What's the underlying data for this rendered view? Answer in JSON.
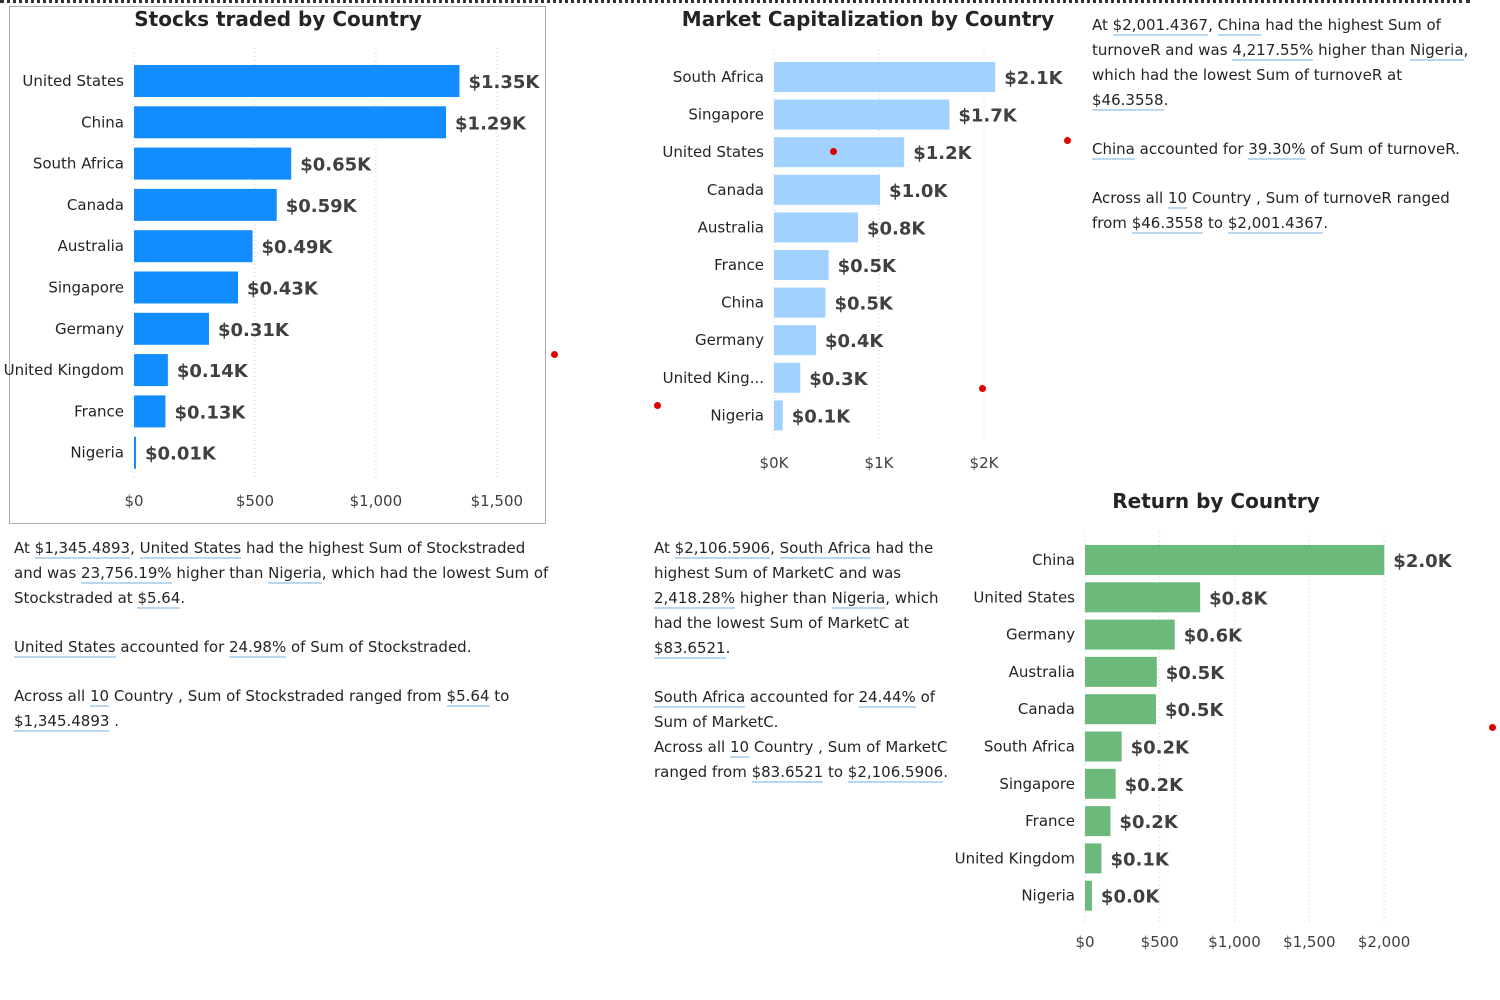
{
  "chart_data": [
    {
      "id": "stocks",
      "type": "bar",
      "orientation": "horizontal",
      "title": "Stocks traded by Country",
      "categories": [
        "United States",
        "China",
        "South Africa",
        "Canada",
        "Australia",
        "Singapore",
        "Germany",
        "United Kingdom",
        "France",
        "Nigeria"
      ],
      "values": [
        1345.4893,
        1290,
        650,
        590,
        490,
        430,
        310,
        140,
        130,
        5.64
      ],
      "data_labels": [
        "$1.35K",
        "$1.29K",
        "$0.65K",
        "$0.59K",
        "$0.49K",
        "$0.43K",
        "$0.31K",
        "$0.14K",
        "$0.13K",
        "$0.01K"
      ],
      "xlim": [
        0,
        1600
      ],
      "xticks": [
        0,
        500,
        1000,
        1500
      ],
      "xtick_labels": [
        "$0",
        "$500",
        "$1,000",
        "$1,500"
      ],
      "grid": true,
      "color": "#118dff"
    },
    {
      "id": "market_cap",
      "type": "bar",
      "orientation": "horizontal",
      "title": "Market Capitalization by Country",
      "categories": [
        "South Africa",
        "Singapore",
        "United States",
        "Canada",
        "Australia",
        "France",
        "China",
        "Germany",
        "United King...",
        "Nigeria"
      ],
      "values": [
        2106.5906,
        1670,
        1240,
        1010,
        800,
        520,
        490,
        400,
        250,
        83.6521
      ],
      "data_labels": [
        "$2.1K",
        "$1.7K",
        "$1.2K",
        "$1.0K",
        "$0.8K",
        "$0.5K",
        "$0.5K",
        "$0.4K",
        "$0.3K",
        "$0.1K"
      ],
      "xlim": [
        0,
        2400
      ],
      "xticks": [
        0,
        1000,
        2000
      ],
      "xtick_labels": [
        "$0K",
        "$1K",
        "$2K"
      ],
      "grid": true,
      "color": "#a0d1ff"
    },
    {
      "id": "return",
      "type": "bar",
      "orientation": "horizontal",
      "title": "Return by Country",
      "categories": [
        "China",
        "United States",
        "Germany",
        "Australia",
        "Canada",
        "South Africa",
        "Singapore",
        "France",
        "United Kingdom",
        "Nigeria"
      ],
      "values": [
        2001.4367,
        770,
        600,
        480,
        475,
        245,
        205,
        170,
        110,
        46.3558
      ],
      "data_labels": [
        "$2.0K",
        "$0.8K",
        "$0.6K",
        "$0.5K",
        "$0.5K",
        "$0.2K",
        "$0.2K",
        "$0.2K",
        "$0.1K",
        "$0.0K"
      ],
      "xlim": [
        0,
        2200
      ],
      "xticks": [
        0,
        500,
        1000,
        1500,
        2000
      ],
      "xtick_labels": [
        "$0",
        "$500",
        "$1,000",
        "$1,500",
        "$2,000"
      ],
      "grid": true,
      "color": "#6bb97b"
    }
  ],
  "narratives": {
    "stocks": {
      "p1": {
        "a": "At ",
        "v1": "$1,345.4893",
        "b": ", ",
        "c1": "United States",
        "c": " had the highest Sum of Stockstraded and was ",
        "v2": "23,756.19%",
        "d": " higher than ",
        "c2": "Nigeria",
        "e": ", which had the lowest Sum of Stockstraded at ",
        "v3": "$5.64",
        "f": "."
      },
      "p2": {
        "c1": "United States",
        "a": " accounted for ",
        "v1": "24.98%",
        "b": " of Sum of Stockstraded."
      },
      "p3": {
        "a": "Across all ",
        "v1": "10",
        "b": " Country , Sum of Stockstraded ranged from ",
        "v2": "$5.64",
        "c": " to ",
        "v3": "$1,345.4893",
        "d": " ."
      }
    },
    "market_cap": {
      "p1": {
        "a": "At ",
        "v1": "$2,106.5906",
        "b": ", ",
        "c1": "South Africa",
        "c": " had the highest Sum of MarketC and was ",
        "v2": "2,418.28%",
        "d": " higher than ",
        "c2": "Nigeria",
        "e": ", which had the lowest Sum of MarketC at ",
        "v3": "$83.6521",
        "f": "."
      },
      "p2": {
        "c1": "South Africa",
        "a": " accounted for ",
        "v1": "24.44%",
        "b": " of Sum of MarketC."
      },
      "p3": {
        "a": "Across all ",
        "v1": "10",
        "b": " Country , Sum of MarketC ranged from ",
        "v2": "$83.6521",
        "c": " to ",
        "v3": "$2,106.5906",
        "d": "."
      }
    },
    "return": {
      "p1": {
        "a": "At ",
        "v1": "$2,001.4367",
        "b": ", ",
        "c1": "China",
        "c": " had the highest Sum of turnoveR and was ",
        "v2": "4,217.55%",
        "d": " higher than ",
        "c2": "Nigeria",
        "e": ", which had the lowest Sum of turnoveR at ",
        "v3": "$46.3558",
        "f": "."
      },
      "p2": {
        "c1": "China",
        "a": " accounted for ",
        "v1": "39.30%",
        "b": " of Sum of turnoveR."
      },
      "p3": {
        "a": "Across all ",
        "v1": "10",
        "b": " Country , Sum of turnoveR ranged from ",
        "v2": "$46.3558",
        "c": " to ",
        "v3": "$2,001.4367",
        "d": "."
      }
    }
  }
}
